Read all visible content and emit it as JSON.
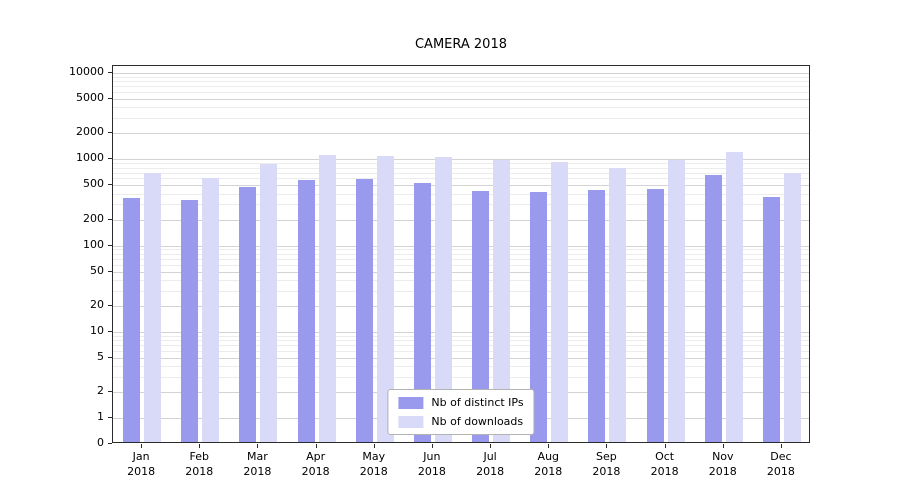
{
  "chart_data": {
    "type": "bar",
    "title": "CAMERA 2018",
    "categories": [
      "Jan",
      "Feb",
      "Mar",
      "Apr",
      "May",
      "Jun",
      "Jul",
      "Aug",
      "Sep",
      "Oct",
      "Nov",
      "Dec"
    ],
    "year_label": "2018",
    "series": [
      {
        "name": "Nb of distinct IPs",
        "color": "#9999ee",
        "values": [
          340,
          320,
          450,
          540,
          560,
          500,
          410,
          400,
          420,
          430,
          620,
          350
        ]
      },
      {
        "name": "Nb of downloads",
        "color": "#d9d9f8",
        "values": [
          650,
          580,
          840,
          1050,
          1030,
          1000,
          930,
          880,
          750,
          930,
          1150,
          660
        ]
      }
    ],
    "xlabel": "",
    "ylabel": "",
    "yscale": "log",
    "ylim": [
      0,
      10000
    ],
    "yticks": [
      0,
      1,
      2,
      5,
      10,
      20,
      50,
      100,
      200,
      500,
      1000,
      2000,
      5000,
      10000
    ],
    "grid": "horizontal, log major + minor",
    "legend_position": "lower center"
  },
  "colors": {
    "bar_distinct_ips": "#9999ee",
    "bar_downloads": "#d9d9f8",
    "grid_major": "#d3d3d3",
    "grid_minor": "#ececec",
    "axis": "#2b2b2b",
    "background": "#ffffff"
  }
}
